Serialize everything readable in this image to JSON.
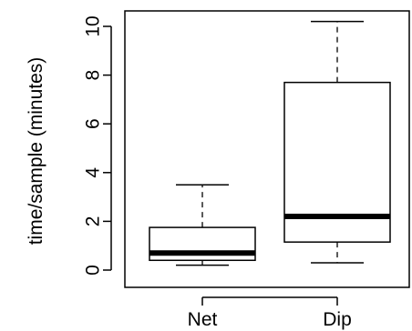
{
  "chart_data": {
    "type": "boxplot",
    "title": "",
    "xlabel": "",
    "ylabel": "time/sample (minutes)",
    "ylim": [
      0,
      10
    ],
    "yticks": [
      "0",
      "2",
      "4",
      "6",
      "8",
      "10"
    ],
    "categories": [
      "Net",
      "Dip"
    ],
    "boxes": [
      {
        "category": "Net",
        "whisker_low": 0.2,
        "q1": 0.4,
        "median": 0.7,
        "q3": 1.75,
        "whisker_high": 3.5
      },
      {
        "category": "Dip",
        "whisker_low": 0.3,
        "q1": 1.15,
        "median": 2.2,
        "q3": 7.7,
        "whisker_high": 10.2
      }
    ],
    "grid": false,
    "legend": "none"
  }
}
